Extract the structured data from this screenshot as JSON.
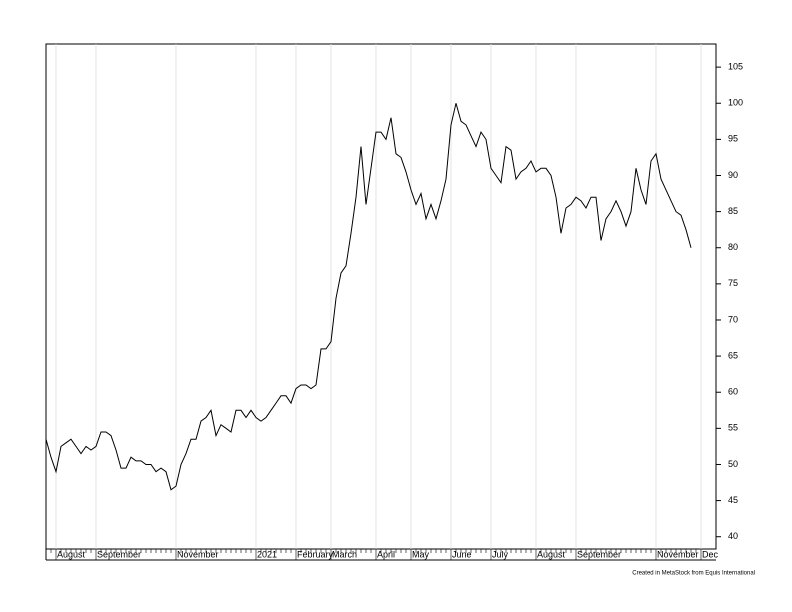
{
  "chart_data": {
    "type": "line",
    "color": "#000000",
    "grid": true,
    "y_axis_side": "right",
    "footnote": "Created in MetaStock from Equis International",
    "categories": [
      null,
      null,
      "August",
      null,
      null,
      null,
      null,
      null,
      null,
      null,
      "September",
      null,
      null,
      null,
      null,
      null,
      null,
      null,
      null,
      null,
      null,
      null,
      null,
      null,
      null,
      null,
      "November",
      null,
      null,
      null,
      null,
      null,
      null,
      null,
      null,
      null,
      null,
      null,
      null,
      null,
      null,
      null,
      "2021",
      null,
      null,
      null,
      null,
      null,
      null,
      null,
      "February",
      null,
      null,
      null,
      null,
      null,
      null,
      "March",
      null,
      null,
      null,
      null,
      null,
      null,
      null,
      null,
      "April",
      null,
      null,
      null,
      null,
      null,
      null,
      "May",
      null,
      null,
      null,
      null,
      null,
      null,
      null,
      "June",
      null,
      null,
      null,
      null,
      null,
      null,
      null,
      "July",
      null,
      null,
      null,
      null,
      null,
      null,
      null,
      null,
      "August",
      null,
      null,
      null,
      null,
      null,
      null,
      null,
      "September",
      null,
      null,
      null,
      null,
      null,
      null,
      null,
      null,
      null,
      null,
      null,
      null,
      null,
      null,
      null,
      "November",
      null,
      null,
      null,
      null,
      null,
      null,
      null,
      null,
      "Dec"
    ],
    "values": [
      53.5,
      51,
      49,
      52.5,
      53,
      53.5,
      52.5,
      51.5,
      52.5,
      52,
      52.5,
      54.5,
      54.5,
      54,
      52,
      49.5,
      49.5,
      51,
      50.5,
      50.5,
      50,
      50,
      49,
      49.5,
      49,
      46.5,
      47,
      50,
      51.5,
      53.5,
      53.5,
      56,
      56.5,
      57.5,
      54,
      55.5,
      55,
      54.5,
      57.5,
      57.5,
      56.5,
      57.5,
      56.5,
      56,
      56.5,
      57.5,
      58.5,
      59.5,
      59.5,
      58.5,
      60.5,
      61,
      61,
      60.5,
      61,
      66,
      66,
      67,
      73,
      76.5,
      77.5,
      82,
      87,
      94,
      86,
      91,
      96,
      96,
      95,
      98,
      93,
      92.5,
      90.5,
      88,
      86,
      87.5,
      84,
      86,
      84,
      86.5,
      89.5,
      97,
      100,
      97.5,
      97,
      95.5,
      94,
      96,
      95,
      91,
      90,
      89,
      94,
      93.5,
      89.5,
      90.5,
      91,
      92,
      90.5,
      91,
      91,
      90,
      87,
      82,
      85.5,
      86,
      87,
      86.5,
      85.5,
      87,
      87,
      81,
      84,
      85,
      86.5,
      85,
      83,
      85,
      91,
      88,
      86,
      92,
      93,
      89.5,
      88,
      86.5,
      85,
      84.5,
      82.5,
      80,
      null,
      null
    ],
    "ylim": [
      38.3,
      108.2
    ],
    "yticks": [
      40,
      45,
      50,
      55,
      60,
      65,
      70,
      75,
      80,
      85,
      90,
      95,
      100,
      105
    ]
  }
}
